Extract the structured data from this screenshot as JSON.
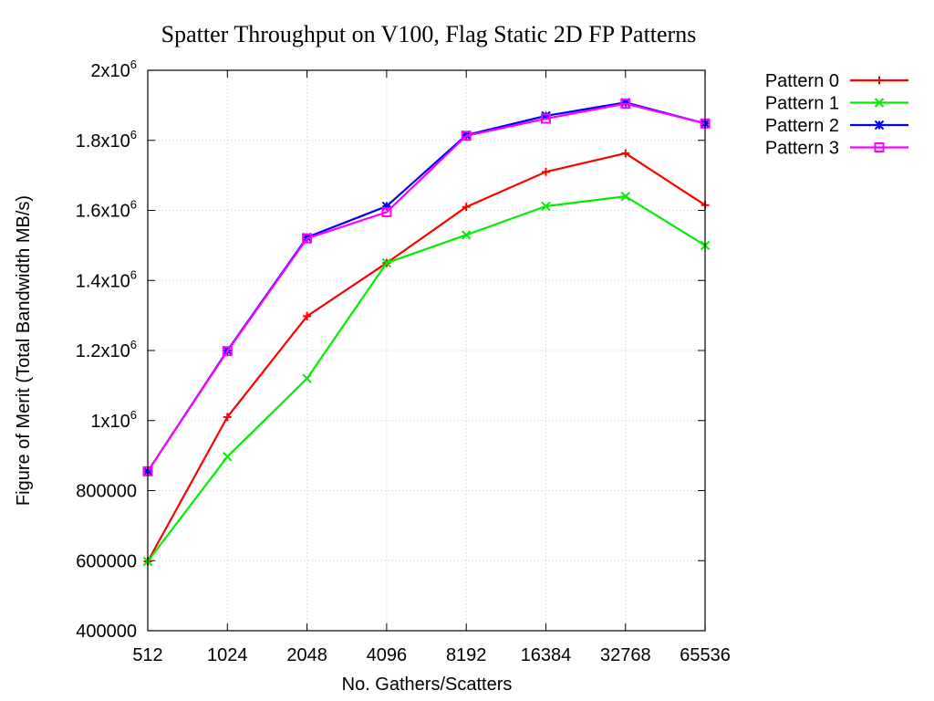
{
  "chart_data": {
    "type": "line",
    "title": "Spatter Throughput on V100, Flag Static 2D FP Patterns",
    "xlabel": "No. Gathers/Scatters",
    "ylabel": "Figure of Merit (Total Bandwidth MB/s)",
    "x_scale": "log2",
    "x": [
      512,
      1024,
      2048,
      4096,
      8192,
      16384,
      32768,
      65536
    ],
    "x_tick_labels": [
      "512",
      "1024",
      "2048",
      "4096",
      "8192",
      "16384",
      "32768",
      "65536"
    ],
    "ylim": [
      400000,
      2000000
    ],
    "y_ticks": [
      400000,
      600000,
      800000,
      1000000,
      1200000,
      1400000,
      1600000,
      1800000,
      2000000
    ],
    "y_tick_labels": [
      {
        "base": "400000",
        "sup": ""
      },
      {
        "base": "600000",
        "sup": ""
      },
      {
        "base": "800000",
        "sup": ""
      },
      {
        "base": "1x10",
        "sup": "6"
      },
      {
        "base": "1.2x10",
        "sup": "6"
      },
      {
        "base": "1.4x10",
        "sup": "6"
      },
      {
        "base": "1.6x10",
        "sup": "6"
      },
      {
        "base": "1.8x10",
        "sup": "6"
      },
      {
        "base": "2x10",
        "sup": "6"
      }
    ],
    "grid": true,
    "legend_position": "outside-top-right",
    "series": [
      {
        "name": "Pattern 0",
        "color": "#ff0000",
        "marker": "plus",
        "values": [
          598000,
          1010000,
          1298000,
          1450000,
          1610000,
          1710000,
          1763000,
          1615000
        ]
      },
      {
        "name": "Pattern 1",
        "color": "#00ee00",
        "marker": "x",
        "values": [
          598000,
          897000,
          1120000,
          1450000,
          1530000,
          1612000,
          1640000,
          1500000
        ]
      },
      {
        "name": "Pattern 2",
        "color": "#0000ff",
        "marker": "star",
        "values": [
          855000,
          1200000,
          1523000,
          1612000,
          1815000,
          1870000,
          1908000,
          1848000
        ]
      },
      {
        "name": "Pattern 3",
        "color": "#ff00ff",
        "marker": "square",
        "values": [
          855000,
          1198000,
          1520000,
          1595000,
          1813000,
          1862000,
          1905000,
          1848000
        ]
      }
    ]
  }
}
